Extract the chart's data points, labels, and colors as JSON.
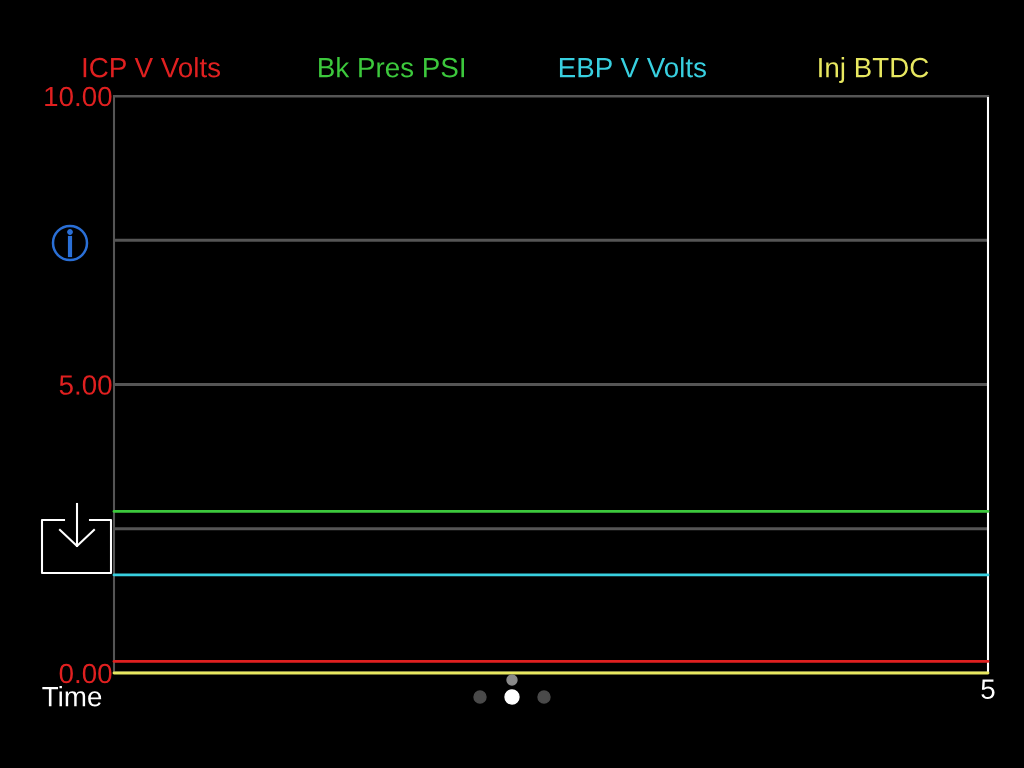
{
  "chart_data": {
    "type": "line",
    "xlabel": "Time",
    "categories": [
      null,
      null,
      null,
      null,
      null,
      null,
      null,
      null,
      null,
      null,
      "5"
    ],
    "series": [
      {
        "name": "ICP V Volts",
        "color": "#e02020",
        "values": [
          0.2,
          0.2,
          0.2,
          0.2,
          0.2,
          0.2,
          0.2,
          0.2,
          0.2,
          0.2,
          0.2
        ]
      },
      {
        "name": "Bk Pres PSI",
        "color": "#3cc83c",
        "values": [
          2.8,
          2.8,
          2.8,
          2.8,
          2.8,
          2.8,
          2.8,
          2.8,
          2.8,
          2.8,
          2.8
        ]
      },
      {
        "name": "EBP V Volts",
        "color": "#38d0e0",
        "values": [
          1.7,
          1.7,
          1.7,
          1.7,
          1.7,
          1.7,
          1.7,
          1.7,
          1.7,
          1.7,
          1.7
        ]
      },
      {
        "name": "Inj BTDC",
        "color": "#e8e860",
        "values": [
          0,
          0,
          0,
          0,
          0,
          0,
          0,
          0,
          0,
          0,
          0
        ]
      }
    ],
    "ylim": [
      0,
      10
    ],
    "yticks": [
      {
        "value": 0,
        "label": "0.00"
      },
      {
        "value": 2.5,
        "label": null
      },
      {
        "value": 5,
        "label": "5.00"
      },
      {
        "value": 7.5,
        "label": null
      },
      {
        "value": 10,
        "label": "10.00"
      }
    ],
    "grid": "y",
    "legend": "top"
  }
}
